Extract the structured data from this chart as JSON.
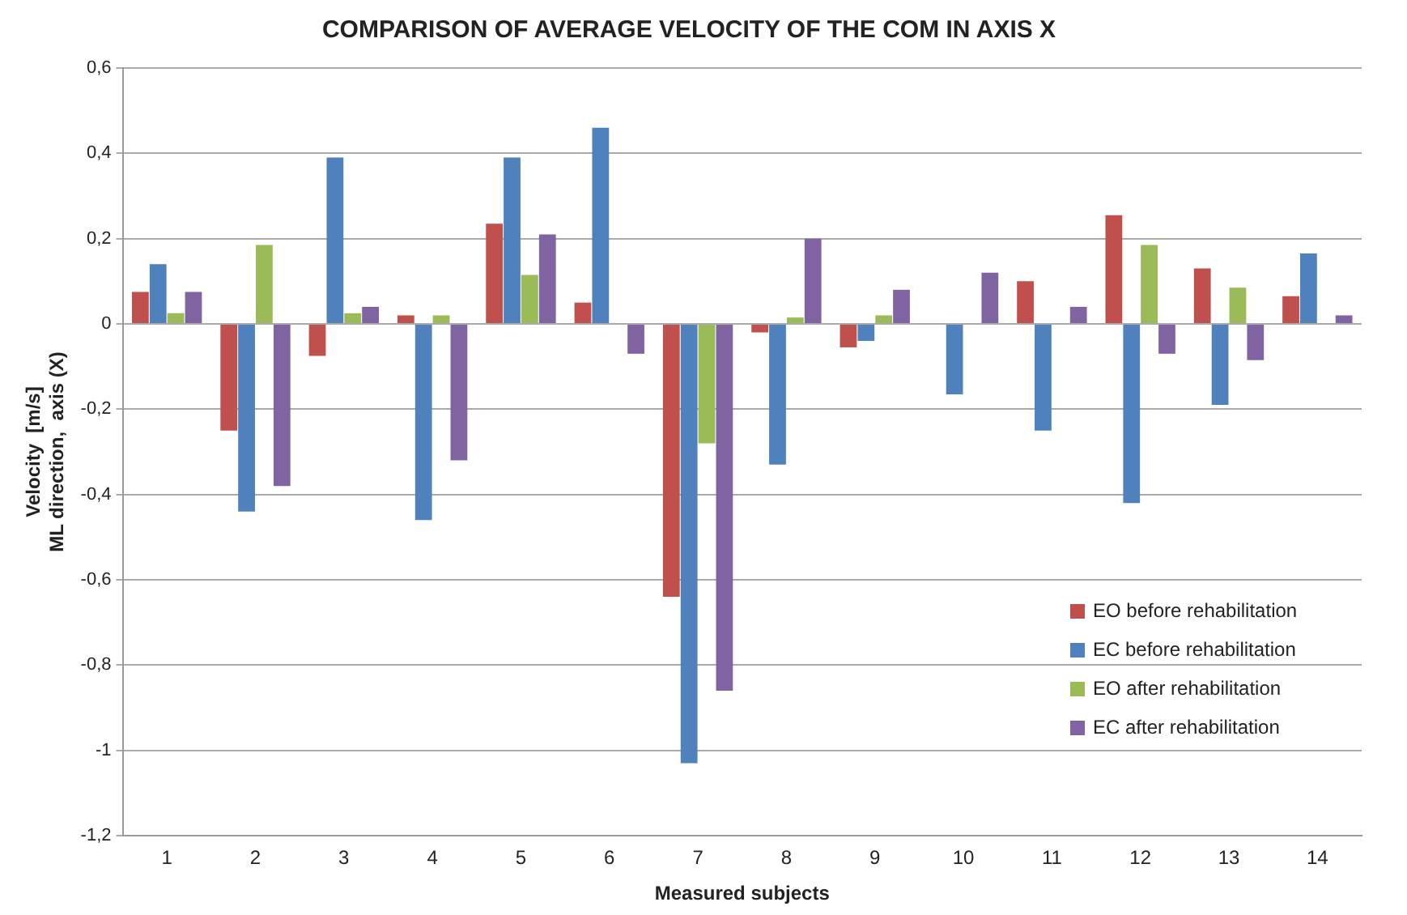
{
  "chart_data": {
    "type": "bar",
    "title": "COMPARISON OF AVERAGE VELOCITY OF THE COM IN AXIS X",
    "xlabel": "Measured subjects",
    "ylabel": "Velocity  [m/s]\nML direction,  axis (X)",
    "categories": [
      "1",
      "2",
      "3",
      "4",
      "5",
      "6",
      "7",
      "8",
      "9",
      "10",
      "11",
      "12",
      "13",
      "14"
    ],
    "series": [
      {
        "name": "EO before rehabilitation",
        "color": "#c0504d",
        "values": [
          0.075,
          -0.25,
          -0.075,
          0.02,
          0.235,
          0.05,
          -0.64,
          -0.02,
          -0.055,
          null,
          0.1,
          0.255,
          0.13,
          0.065
        ]
      },
      {
        "name": "EC before rehabilitation",
        "color": "#4f81bd",
        "values": [
          0.14,
          -0.44,
          0.39,
          -0.46,
          0.39,
          0.46,
          -1.03,
          -0.33,
          -0.04,
          -0.165,
          -0.25,
          -0.42,
          -0.19,
          0.165
        ]
      },
      {
        "name": "EO after rehabilitation",
        "color": "#9bbb59",
        "values": [
          0.025,
          0.185,
          0.025,
          0.02,
          0.115,
          null,
          -0.28,
          0.015,
          0.02,
          null,
          null,
          0.185,
          0.085,
          null
        ]
      },
      {
        "name": "EC after rehabilitation",
        "color": "#8064a2",
        "values": [
          0.075,
          -0.38,
          0.04,
          -0.32,
          0.21,
          -0.07,
          -0.86,
          0.2,
          0.08,
          0.12,
          0.04,
          -0.07,
          -0.085,
          0.02
        ]
      }
    ],
    "ylim": [
      -1.2,
      0.6
    ],
    "yticks": [
      {
        "value": 0.6,
        "label": "0,6"
      },
      {
        "value": 0.4,
        "label": "0,4"
      },
      {
        "value": 0.2,
        "label": "0,2"
      },
      0,
      {
        "value": -0.2,
        "label": "-0,2"
      },
      {
        "value": -0.4,
        "label": "-0,4"
      },
      {
        "value": -0.6,
        "label": "-0,6"
      },
      {
        "value": -0.8,
        "label": "-0,8"
      },
      -1,
      {
        "value": -1.2,
        "label": "-1,2"
      }
    ],
    "grid": "y",
    "legend": "bottom right"
  }
}
